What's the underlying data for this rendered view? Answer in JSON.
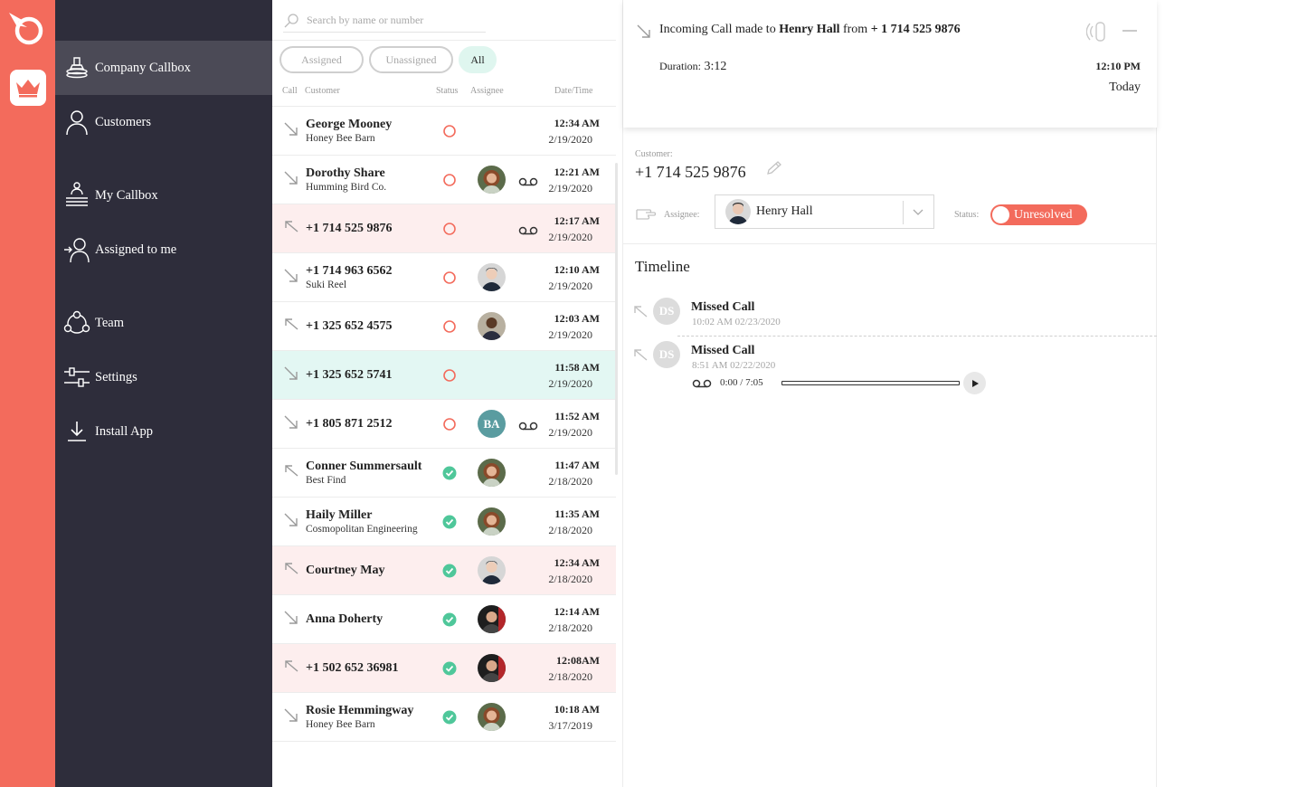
{
  "colors": {
    "brand": "#f36b5c",
    "sidebar": "#2e2d3b",
    "sidebar_active": "#4b4a56",
    "resolved": "#4fc79a",
    "missed_row": "#fdeeee",
    "selected_row": "#e3f7f3"
  },
  "sidebar": {
    "items": [
      {
        "label": "Company Callbox",
        "icon": "callbox-stack-icon",
        "active": true
      },
      {
        "label": "Customers",
        "icon": "person-icon"
      },
      {
        "label": "My Callbox",
        "icon": "my-callbox-icon"
      },
      {
        "label": "Assigned to me",
        "icon": "assign-person-icon"
      },
      {
        "label": "Team",
        "icon": "team-icon"
      },
      {
        "label": "Settings",
        "icon": "sliders-icon"
      },
      {
        "label": "Install App",
        "icon": "download-icon"
      }
    ]
  },
  "list": {
    "search_placeholder": "Search by name or number",
    "filters": [
      "Assigned",
      "Unassigned",
      "All"
    ],
    "active_filter": "All",
    "columns": {
      "call": "Call",
      "customer": "Customer",
      "status": "Status",
      "assignee": "Assignee",
      "datetime": "Date/Time"
    },
    "rows": [
      {
        "name": "George Mooney",
        "company": "Honey Bee Barn",
        "direction": "incoming",
        "status": "unresolved",
        "assignee": "",
        "voicemail": false,
        "time": "12:34 AM",
        "date": "2/19/2020",
        "state": ""
      },
      {
        "name": "Dorothy Share",
        "company": "Humming Bird Co.",
        "direction": "incoming",
        "status": "unresolved",
        "assignee": "woman-curly",
        "voicemail": true,
        "time": "12:21 AM",
        "date": "2/19/2020",
        "state": ""
      },
      {
        "name": "+1 714 525 9876",
        "company": "",
        "direction": "missed",
        "status": "unresolved",
        "assignee": "",
        "voicemail": true,
        "time": "12:17 AM",
        "date": "2/19/2020",
        "state": "missed"
      },
      {
        "name": "+1 714 963 6562",
        "company": "Suki Reel",
        "direction": "incoming",
        "status": "unresolved",
        "assignee": "man-light",
        "voicemail": false,
        "time": "12:10 AM",
        "date": "2/19/2020",
        "state": ""
      },
      {
        "name": "+1 325 652 4575",
        "company": "",
        "direction": "missed",
        "status": "unresolved",
        "assignee": "man-dark",
        "voicemail": false,
        "time": "12:03 AM",
        "date": "2/19/2020",
        "state": ""
      },
      {
        "name": "+1 325 652 5741",
        "company": "",
        "direction": "incoming",
        "status": "unresolved",
        "assignee": "",
        "voicemail": false,
        "time": "11:58 AM",
        "date": "2/19/2020",
        "state": "selected"
      },
      {
        "name": "+1 805 871 2512",
        "company": "",
        "direction": "incoming",
        "status": "unresolved",
        "assignee": "initials",
        "initials": "BA",
        "voicemail": true,
        "time": "11:52 AM",
        "date": "2/19/2020",
        "state": ""
      },
      {
        "name": "Conner Summersault",
        "company": "Best Find",
        "direction": "missed",
        "status": "resolved",
        "assignee": "woman-curly",
        "voicemail": false,
        "time": "11:47 AM",
        "date": "2/18/2020",
        "state": ""
      },
      {
        "name": "Haily  Miller",
        "company": "Cosmopolitan Engineering",
        "direction": "incoming",
        "status": "resolved",
        "assignee": "woman-curly",
        "voicemail": false,
        "time": "11:35 AM",
        "date": "2/18/2020",
        "state": ""
      },
      {
        "name": "Courtney May",
        "company": "",
        "direction": "missed",
        "status": "resolved",
        "assignee": "man-light",
        "voicemail": false,
        "time": "12:34 AM",
        "date": "2/18/2020",
        "state": "missed"
      },
      {
        "name": "Anna Doherty",
        "company": "",
        "direction": "incoming",
        "status": "resolved",
        "assignee": "man-dark2",
        "voicemail": false,
        "time": "12:14 AM",
        "date": "2/18/2020",
        "state": ""
      },
      {
        "name": "+1 502 652 36981",
        "company": "",
        "direction": "missed",
        "status": "resolved",
        "assignee": "man-dark2",
        "voicemail": false,
        "time": "12:08AM",
        "date": "2/18/2020",
        "state": "missed"
      },
      {
        "name": "Rosie Hemmingway",
        "company": "Honey Bee Barn",
        "direction": "incoming",
        "status": "resolved",
        "assignee": "woman-curly",
        "voicemail": false,
        "time": "10:18 AM",
        "date": "3/17/2019",
        "state": ""
      }
    ]
  },
  "detail": {
    "headline_prefix": "Incoming Call made to",
    "headline_to": "Henry Hall",
    "headline_mid": "from",
    "headline_from": "+ 1 714 525 9876",
    "duration_label": "Duration:",
    "duration_value": "3:12",
    "time": "12:10 PM",
    "day": "Today",
    "customer_label": "Customer:",
    "customer_phone": "+1 714 525 9876",
    "assignee_label": "Assignee:",
    "assignee_name": "Henry Hall",
    "status_label": "Status:",
    "status_value": "Unresolved",
    "timeline_title": "Timeline",
    "timeline": [
      {
        "initials": "DS",
        "title": "Missed Call",
        "when": "10:02 AM 02/23/2020"
      },
      {
        "initials": "DS",
        "title": "Missed Call",
        "when": "8:51 AM 02/22/2020",
        "player_time": "0:00 / 7:05"
      }
    ]
  }
}
